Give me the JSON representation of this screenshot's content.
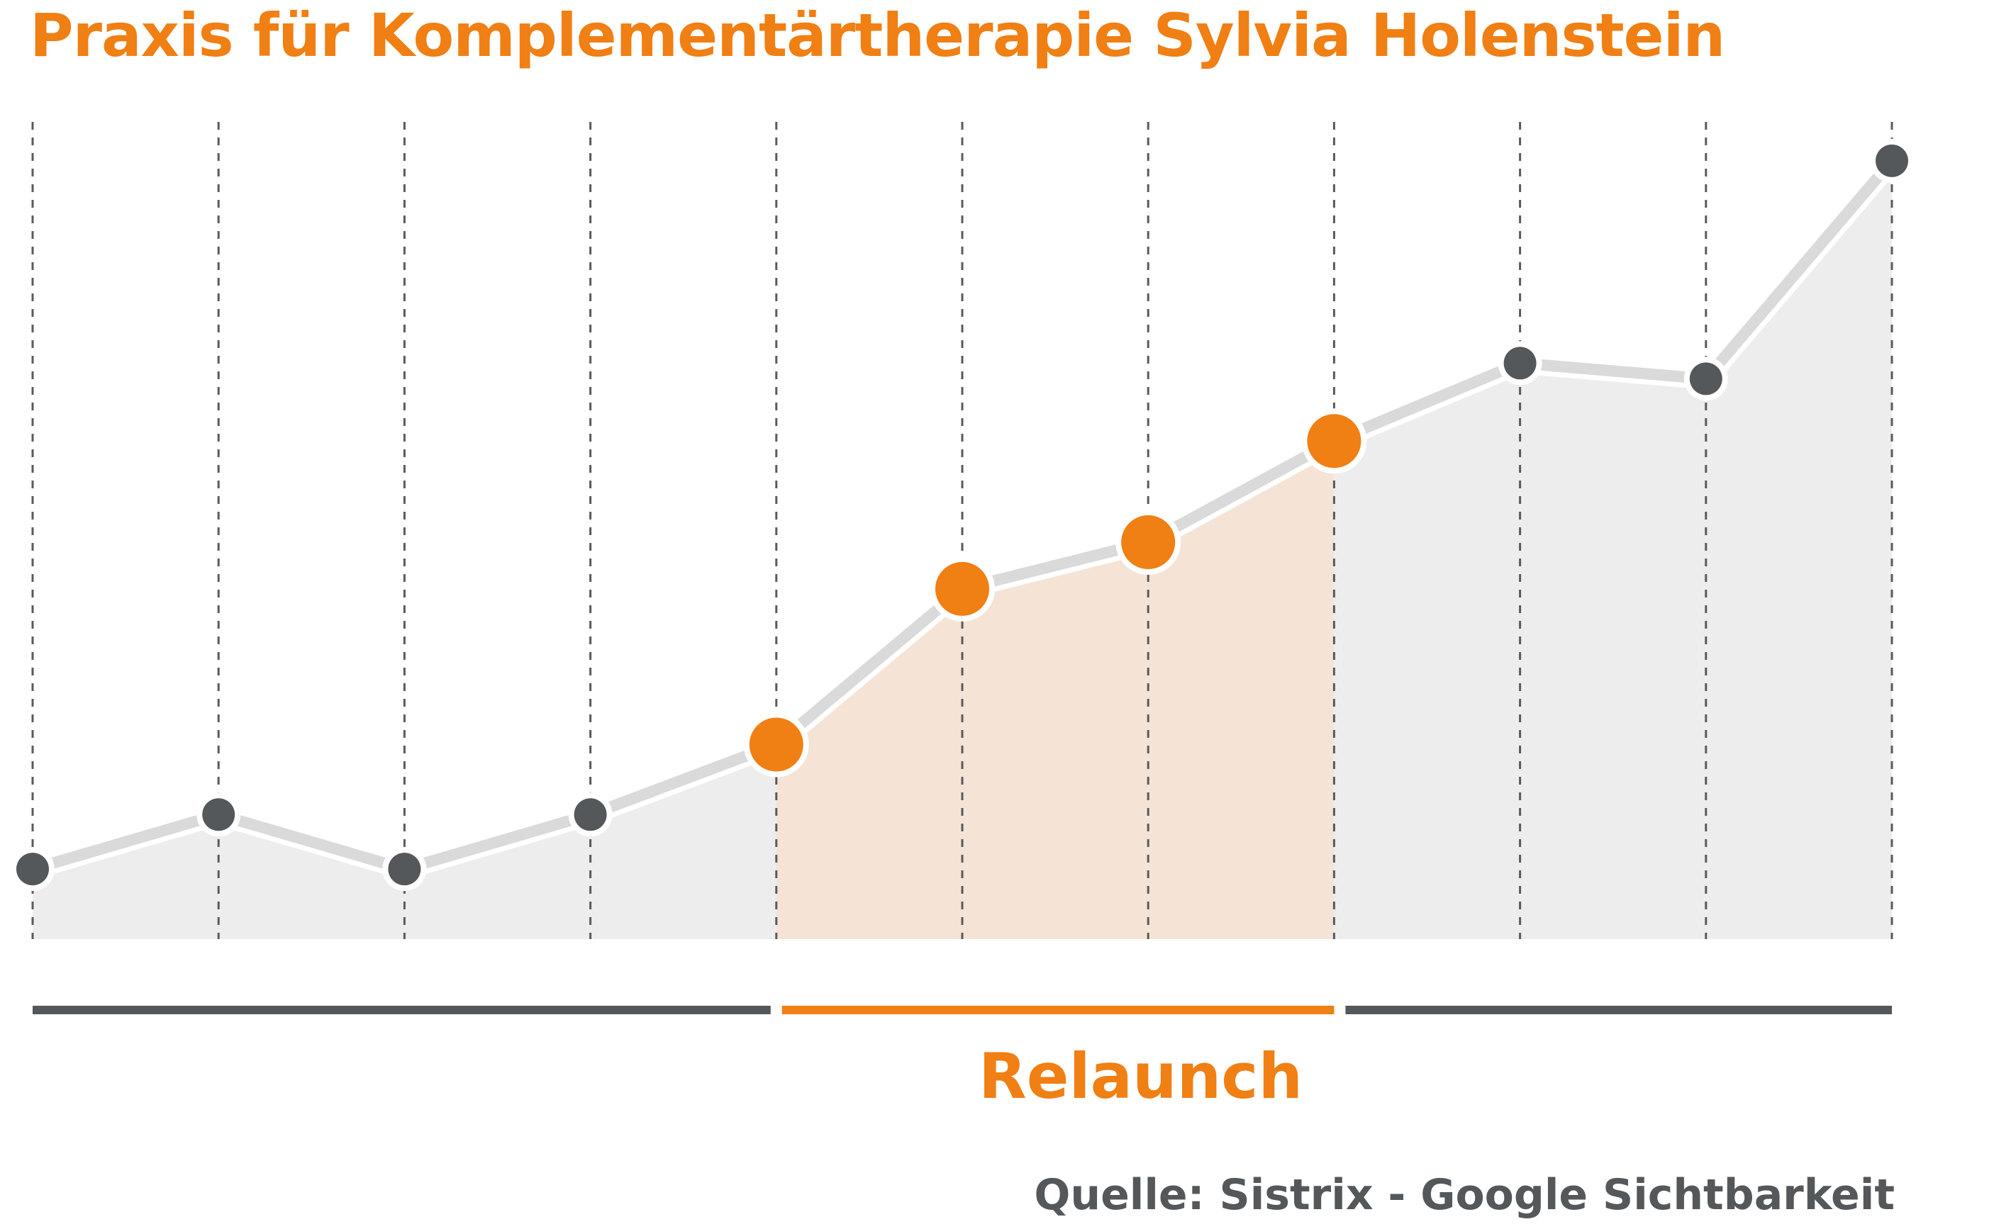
{
  "colors": {
    "accent": "#F07F14",
    "dark": "#54585B",
    "line": "#DADADA",
    "area": "#EDEDED",
    "highlight_area": "#F5E4D6",
    "grid": "#5A5A5A",
    "source_text": "#54585B"
  },
  "chart_data": {
    "type": "area",
    "title": "Praxis für Komplementärtherapie Sylvia Holenstein",
    "source": "Quelle: Sistrix - Google Sichtbarkeit",
    "x": [
      0,
      1,
      2,
      3,
      4,
      5,
      6,
      7,
      8,
      9,
      10
    ],
    "series": [
      {
        "values": [
          0.09,
          0.16,
          0.09,
          0.16,
          0.25,
          0.45,
          0.51,
          0.64,
          0.74,
          0.72,
          1.0
        ]
      }
    ],
    "ylim": [
      0,
      1.05
    ],
    "grid": "vertical dashed",
    "y_axis_labels": "none",
    "highlight": {
      "label": "Relaunch",
      "start_index": 4,
      "end_index": 7
    }
  }
}
